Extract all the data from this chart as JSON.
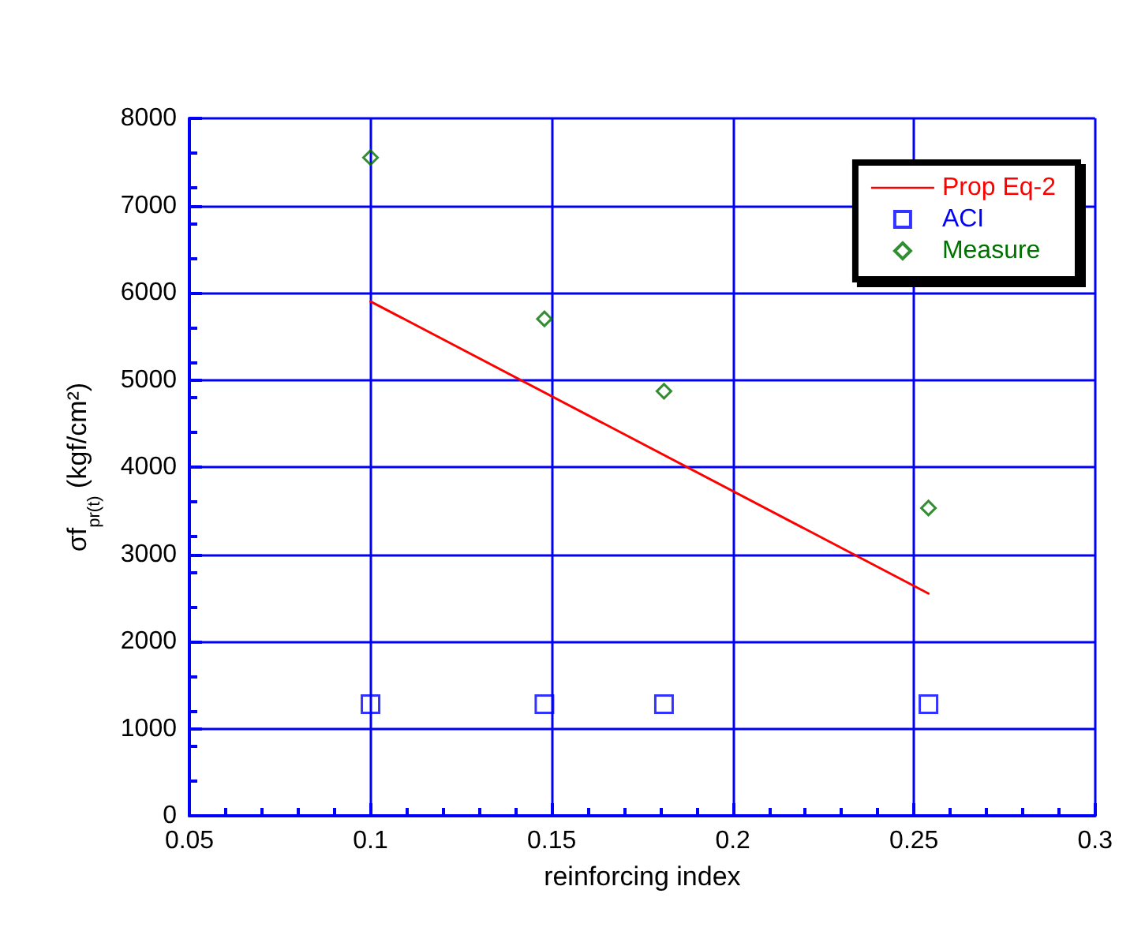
{
  "chart_data": {
    "type": "scatter",
    "xlabel": "reinforcing index",
    "ylabel": "σf$_{pr(t)}$ (kgf/cm²)",
    "xlim": [
      0.05,
      0.3
    ],
    "xticks": [
      0.05,
      0.1,
      0.15,
      0.2,
      0.25,
      0.3
    ],
    "ylim": [
      0,
      8000
    ],
    "yticks": [
      0,
      1000,
      2000,
      3000,
      4000,
      5000,
      6000,
      7000,
      8000
    ],
    "grid": true,
    "legend": "top right",
    "series": [
      {
        "name": "Prop Eq-2",
        "type": "line",
        "color": "#ff0000",
        "marker": "none",
        "line_style": "solid",
        "x": [
          0.1,
          0.254
        ],
        "values": [
          5900,
          2550
        ]
      },
      {
        "name": "ACI",
        "color": "#0000ff",
        "marker": "square",
        "x": [
          0.1,
          0.148,
          0.181,
          0.254
        ],
        "values": [
          1280,
          1280,
          1280,
          1280
        ]
      },
      {
        "name": "Measure",
        "color": "#007000",
        "marker": "diamond",
        "x": [
          0.1,
          0.148,
          0.181,
          0.254
        ],
        "values": [
          7550,
          5700,
          4870,
          3530
        ]
      }
    ]
  }
}
